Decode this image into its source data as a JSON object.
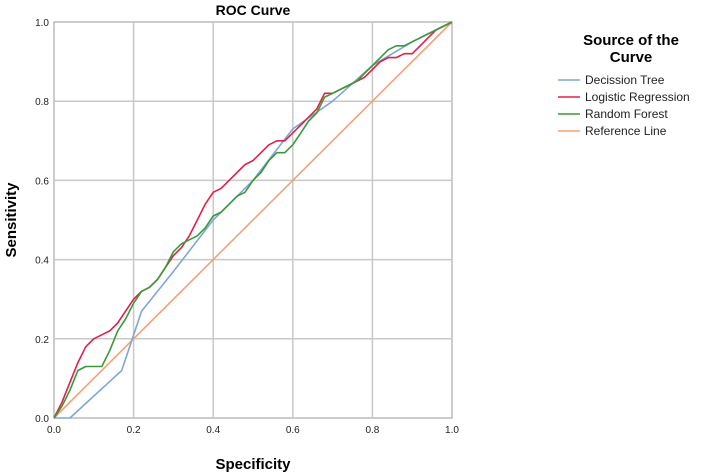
{
  "chart_data": {
    "type": "line",
    "title": "ROC Curve",
    "xlabel": "Specificity",
    "ylabel": "Sensitivity",
    "xlim": [
      0,
      1
    ],
    "ylim": [
      0,
      1
    ],
    "grid": true,
    "xticks": [
      "0.0",
      "0.2",
      "0.4",
      "0.6",
      "0.8",
      "1.0"
    ],
    "yticks": [
      "0.0",
      "0.2",
      "0.4",
      "0.6",
      "0.8",
      "1.0"
    ],
    "legend_title": "Source of the Curve",
    "legend_title_lines": [
      "Source of the",
      "Curve"
    ],
    "legend_position": "right",
    "series": [
      {
        "name": "Decission Tree",
        "color": "#7ea6d8",
        "x": [
          0.0,
          0.04,
          0.17,
          0.22,
          0.3,
          0.4,
          0.5,
          0.6,
          0.7,
          0.8,
          0.9,
          1.0
        ],
        "y": [
          0.0,
          0.0,
          0.12,
          0.27,
          0.37,
          0.5,
          0.6,
          0.73,
          0.8,
          0.89,
          0.95,
          1.0
        ]
      },
      {
        "name": "Logistic Regression",
        "color": "#e0204a",
        "x": [
          0.0,
          0.02,
          0.04,
          0.06,
          0.08,
          0.1,
          0.12,
          0.14,
          0.16,
          0.18,
          0.2,
          0.22,
          0.24,
          0.26,
          0.28,
          0.3,
          0.32,
          0.34,
          0.36,
          0.38,
          0.4,
          0.42,
          0.44,
          0.46,
          0.48,
          0.5,
          0.52,
          0.54,
          0.56,
          0.58,
          0.6,
          0.62,
          0.64,
          0.66,
          0.68,
          0.7,
          0.72,
          0.74,
          0.76,
          0.78,
          0.8,
          0.82,
          0.84,
          0.86,
          0.88,
          0.9,
          0.92,
          0.94,
          0.96,
          0.98,
          1.0
        ],
        "y": [
          0.0,
          0.04,
          0.09,
          0.14,
          0.18,
          0.2,
          0.21,
          0.22,
          0.24,
          0.27,
          0.3,
          0.32,
          0.33,
          0.35,
          0.38,
          0.41,
          0.43,
          0.46,
          0.5,
          0.54,
          0.57,
          0.58,
          0.6,
          0.62,
          0.64,
          0.65,
          0.67,
          0.69,
          0.7,
          0.7,
          0.72,
          0.74,
          0.76,
          0.78,
          0.82,
          0.82,
          0.83,
          0.84,
          0.85,
          0.86,
          0.88,
          0.9,
          0.91,
          0.91,
          0.92,
          0.92,
          0.94,
          0.96,
          0.98,
          0.99,
          1.0
        ]
      },
      {
        "name": "Random Forest",
        "color": "#3a9a3a",
        "x": [
          0.0,
          0.02,
          0.04,
          0.06,
          0.08,
          0.1,
          0.12,
          0.14,
          0.16,
          0.18,
          0.2,
          0.22,
          0.24,
          0.26,
          0.28,
          0.3,
          0.32,
          0.34,
          0.36,
          0.38,
          0.4,
          0.42,
          0.44,
          0.46,
          0.48,
          0.5,
          0.52,
          0.54,
          0.56,
          0.58,
          0.6,
          0.62,
          0.64,
          0.66,
          0.68,
          0.7,
          0.72,
          0.74,
          0.76,
          0.78,
          0.8,
          0.82,
          0.84,
          0.86,
          0.88,
          0.9,
          0.92,
          0.94,
          0.96,
          0.98,
          1.0
        ],
        "y": [
          0.0,
          0.03,
          0.07,
          0.12,
          0.13,
          0.13,
          0.13,
          0.17,
          0.22,
          0.25,
          0.29,
          0.32,
          0.33,
          0.35,
          0.38,
          0.42,
          0.44,
          0.45,
          0.46,
          0.48,
          0.51,
          0.52,
          0.54,
          0.56,
          0.57,
          0.6,
          0.62,
          0.65,
          0.67,
          0.67,
          0.69,
          0.72,
          0.75,
          0.77,
          0.81,
          0.82,
          0.83,
          0.84,
          0.85,
          0.87,
          0.89,
          0.91,
          0.93,
          0.94,
          0.94,
          0.95,
          0.96,
          0.97,
          0.98,
          0.99,
          1.0
        ]
      },
      {
        "name": "Reference Line",
        "color": "#f4a078",
        "x": [
          0.0,
          1.0
        ],
        "y": [
          0.0,
          1.0
        ]
      }
    ]
  }
}
